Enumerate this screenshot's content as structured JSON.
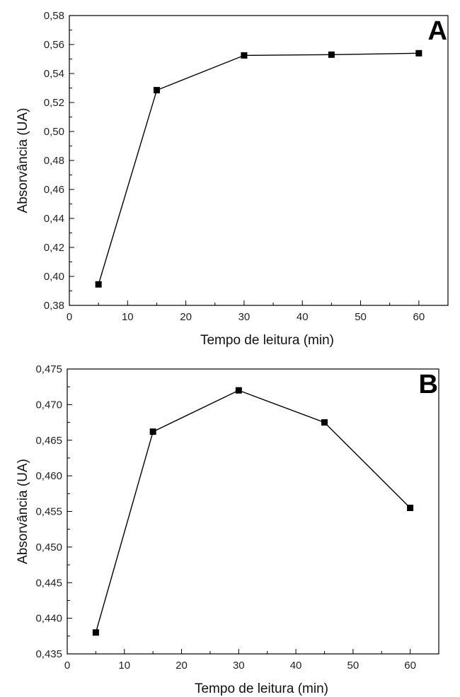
{
  "chart_data": [
    {
      "type": "line",
      "panel_label": "A",
      "xlabel": "Tempo de leitura (min)",
      "ylabel": "Absorvância (UA)",
      "xlim": [
        0,
        65
      ],
      "ylim": [
        0.38,
        0.58
      ],
      "x_ticks": [
        "0",
        "10",
        "20",
        "30",
        "40",
        "50",
        "60"
      ],
      "y_ticks": [
        "0,38",
        "0,40",
        "0,42",
        "0,44",
        "0,46",
        "0,48",
        "0,50",
        "0,52",
        "0,54",
        "0,56",
        "0,58"
      ],
      "grid": false,
      "marker": "square",
      "color": "#000000",
      "series": [
        {
          "x": [
            5,
            15,
            30,
            45,
            60
          ],
          "y": [
            0.3945,
            0.5285,
            0.5525,
            0.553,
            0.554
          ]
        }
      ]
    },
    {
      "type": "line",
      "panel_label": "B",
      "xlabel": "Tempo de leitura (min)",
      "ylabel": "Absorvância (UA)",
      "xlim": [
        0,
        65
      ],
      "ylim": [
        0.435,
        0.475
      ],
      "x_ticks": [
        "0",
        "10",
        "20",
        "30",
        "40",
        "50",
        "60"
      ],
      "y_ticks": [
        "0,435",
        "0,440",
        "0,445",
        "0,450",
        "0,455",
        "0,460",
        "0,465",
        "0,470",
        "0,475"
      ],
      "grid": false,
      "marker": "square",
      "color": "#000000",
      "series": [
        {
          "x": [
            5,
            15,
            30,
            45,
            60
          ],
          "y": [
            0.438,
            0.4662,
            0.472,
            0.4675,
            0.4555
          ]
        }
      ]
    }
  ]
}
